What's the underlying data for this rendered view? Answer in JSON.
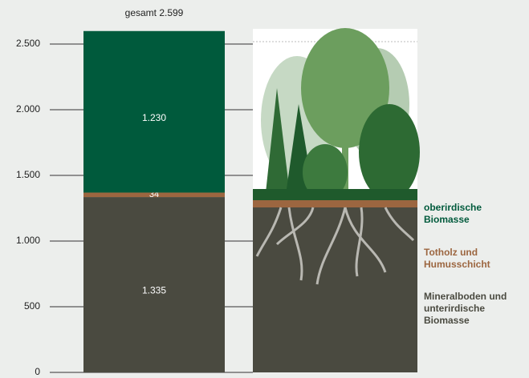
{
  "chart_data": {
    "type": "stacked-bar",
    "total_label": "gesamt 2.599",
    "series": [
      {
        "name": "Mineralboden und unterirdische Biomasse",
        "color": "#4a4a40",
        "values": [
          1335
        ],
        "value_labels": [
          "1.335"
        ]
      },
      {
        "name": "Totholz und Humusschicht",
        "color": "#9c6640",
        "values": [
          34
        ]
      },
      {
        "name": "oberirdische Biomasse",
        "color": "#005a3c",
        "values": [
          1230
        ],
        "value_labels": [
          "1.230"
        ]
      }
    ],
    "ylim": [
      0,
      2500
    ],
    "yticks": [
      0,
      500,
      {
        "value": 1000,
        "label": "1.000"
      },
      {
        "value": 1500,
        "label": "1.500"
      },
      {
        "value": 2000,
        "label": "2.000"
      },
      {
        "value": 2500,
        "label": "2.500"
      }
    ]
  }
}
